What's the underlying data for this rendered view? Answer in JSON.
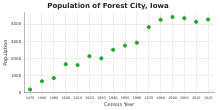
{
  "chart_data": {
    "type": "scatter",
    "title": "Population of Forest City, Iowa",
    "x_label": "Census Year",
    "y_label": "Population",
    "x": [
      1870,
      1880,
      1890,
      1900,
      1910,
      1920,
      1930,
      1940,
      1950,
      1960,
      1970,
      1980,
      1990,
      2000,
      2010,
      2020
    ],
    "values": [
      200,
      680,
      869,
      1680,
      1626,
      2145,
      2016,
      2520,
      2766,
      2930,
      3841,
      4270,
      4430,
      4362,
      4151,
      4285
    ],
    "color": "#2ca02c",
    "marker": "circle",
    "xlim": [
      1865,
      2025
    ],
    "xticks": [
      1870,
      1880,
      1890,
      1900,
      1910,
      1920,
      1930,
      1940,
      1950,
      1960,
      1970,
      1980,
      1990,
      2000,
      2010,
      2020
    ],
    "ylim": [
      0,
      4700
    ],
    "yticks": [
      0,
      1000,
      2000,
      3000,
      4000
    ],
    "grid": true
  }
}
